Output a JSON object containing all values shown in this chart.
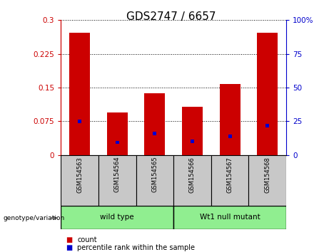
{
  "title": "GDS2747 / 6657",
  "samples": [
    "GSM154563",
    "GSM154564",
    "GSM154565",
    "GSM154566",
    "GSM154567",
    "GSM154568"
  ],
  "red_values": [
    0.272,
    0.095,
    0.137,
    0.108,
    0.158,
    0.272
  ],
  "blue_values": [
    0.075,
    0.028,
    0.048,
    0.03,
    0.042,
    0.065
  ],
  "left_ylim": [
    0,
    0.3
  ],
  "right_ylim": [
    0,
    100
  ],
  "left_yticks": [
    0,
    0.075,
    0.15,
    0.225,
    0.3
  ],
  "right_yticks": [
    0,
    25,
    50,
    75,
    100
  ],
  "left_yticklabels": [
    "0",
    "0.075",
    "0.15",
    "0.225",
    "0.3"
  ],
  "right_yticklabels": [
    "0",
    "25",
    "50",
    "75",
    "100%"
  ],
  "groups": [
    {
      "label": "wild type",
      "start": 0,
      "end": 3
    },
    {
      "label": "Wt1 null mutant",
      "start": 3,
      "end": 6
    }
  ],
  "bar_color": "#CC0000",
  "blue_color": "#0000CC",
  "bar_width": 0.55,
  "bg_color": "#ffffff",
  "xlabel_area_color": "#c8c8c8",
  "group_fill_color": "#90EE90",
  "legend_items": [
    "count",
    "percentile rank within the sample"
  ],
  "legend_colors": [
    "#CC0000",
    "#0000CC"
  ],
  "genotype_label": "genotype/variation",
  "title_fontsize": 11,
  "tick_fontsize": 7.5,
  "label_fontsize": 6.0,
  "group_fontsize": 7.5,
  "legend_fontsize": 7.0
}
